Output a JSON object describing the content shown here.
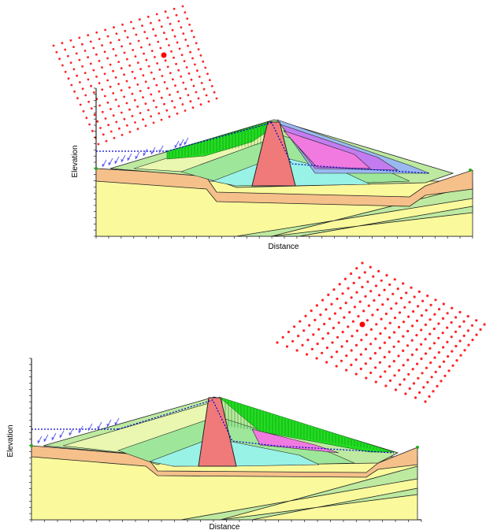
{
  "panels": [
    {
      "id": "top",
      "xlabel": "Distance",
      "ylabel": "Elevation"
    },
    {
      "id": "bottom",
      "xlabel": "Distance",
      "ylabel": "Elevation"
    }
  ],
  "colors": {
    "foundation": "#fafa9c",
    "fill_orange": "#f5c08a",
    "core": "#f07a7a",
    "shell_light": "#e9f7b0",
    "shell_green": "#bdeaa0",
    "shell_mid": "#9ee79a",
    "filter_cyan": "#99f2e6",
    "slice_green": "#22dd22",
    "purple": "#c37cf0",
    "magenta": "#f07ae0",
    "blue": "#9ab8f0",
    "grid_points": "#ff2222",
    "water_line": "#0000cc",
    "load_arrows": "#5555ee"
  },
  "icons": [
    "grid-point-icon",
    "load-arrow-icon",
    "anchor-point-icon"
  ]
}
